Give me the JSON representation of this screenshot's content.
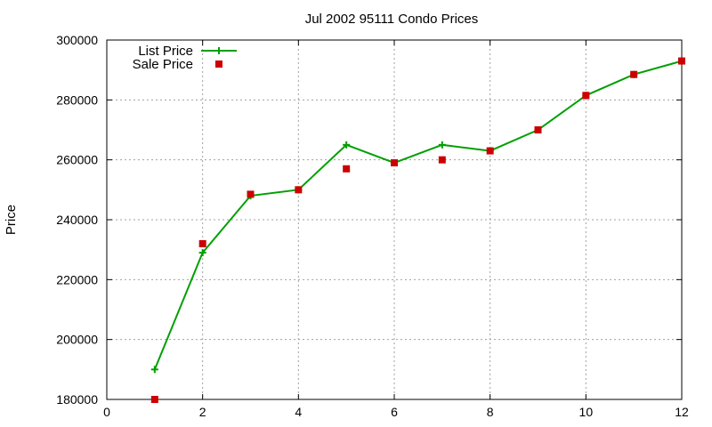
{
  "chart_data": {
    "type": "line",
    "title": "Jul 2002 95111 Condo Prices",
    "xlabel": "",
    "ylabel": "Price",
    "xlim": [
      0,
      12
    ],
    "ylim": [
      180000,
      300000
    ],
    "x_ticks": [
      0,
      2,
      4,
      6,
      8,
      10,
      12
    ],
    "y_ticks": [
      180000,
      200000,
      220000,
      240000,
      260000,
      280000,
      300000
    ],
    "grid": true,
    "legend_position": "top-left",
    "series": [
      {
        "name": "List Price",
        "style": "line+plus",
        "color": "#00a000",
        "x": [
          1,
          2,
          3,
          4,
          5,
          6,
          7,
          8,
          9,
          10,
          11,
          12
        ],
        "values": [
          190000,
          229000,
          248000,
          250000,
          265000,
          259000,
          265000,
          263000,
          270000,
          281500,
          288500,
          293000
        ]
      },
      {
        "name": "Sale Price",
        "style": "square",
        "color": "#cc0000",
        "x": [
          1,
          2,
          3,
          4,
          5,
          6,
          7,
          8,
          9,
          10,
          11,
          12
        ],
        "values": [
          180000,
          232000,
          248500,
          250000,
          257000,
          259000,
          260000,
          263000,
          270000,
          281500,
          288500,
          293000
        ]
      }
    ]
  }
}
